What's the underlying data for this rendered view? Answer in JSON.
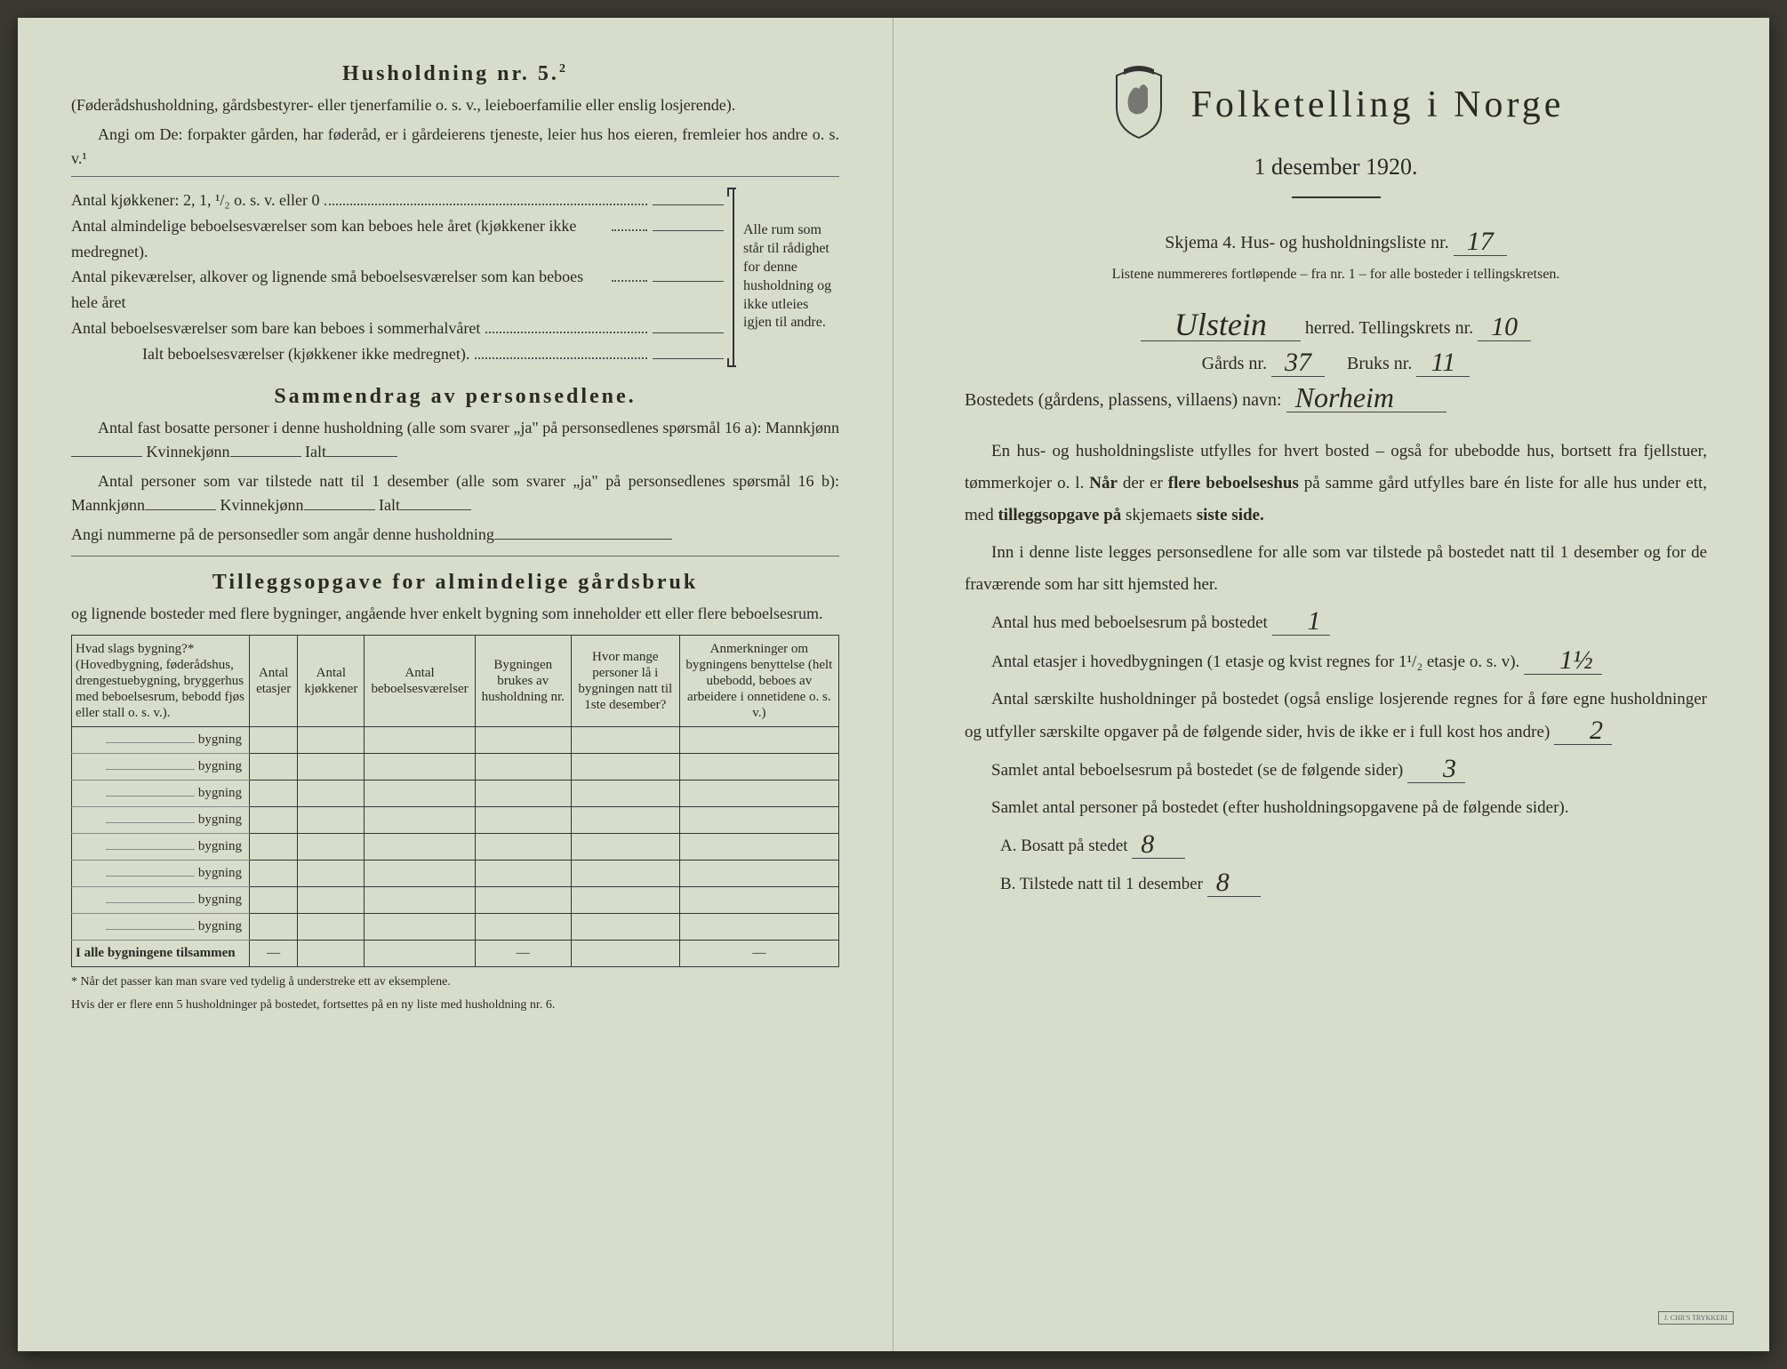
{
  "left": {
    "household_title": "Husholdning nr. 5.",
    "household_sup": "2",
    "household_sub": "(Føderådshusholdning, gårdsbestyrer- eller tjenerfamilie o. s. v., leieboerfamilie eller enslig losjerende).",
    "household_q": "Angi om De: forpakter gården, har føderåd, er i gårdeierens tjeneste, leier hus hos eieren, fremleier hos andre o. s. v.¹",
    "kitchen_line": "Antal kjøkkener: 2, 1, ¹/₂ o. s. v. eller 0",
    "rooms": [
      "Antal almindelige beboelsesværelser som kan beboes hele året (kjøkkener ikke medregnet).",
      "Antal pikeværelser, alkover og lignende små beboelsesværelser som kan beboes hele året",
      "Antal beboelsesværelser som bare kan beboes i sommerhalvåret",
      "Ialt beboelsesværelser (kjøkkener ikke medregnet)."
    ],
    "bracket_note": "Alle rum som står til rådighet for denne husholdning og ikke utleies igjen til andre.",
    "summary_title": "Sammendrag av personsedlene.",
    "summary_l1": "Antal fast bosatte personer i denne husholdning (alle som svarer „ja\" på personsedlenes spørsmål 16 a): Mannkjønn",
    "summary_l1b": "Kvinnekjønn",
    "summary_l1c": "Ialt",
    "summary_l2": "Antal personer som var tilstede natt til 1 desember (alle som svarer „ja\" på personsedlenes spørsmål 16 b): Mannkjønn",
    "summary_l3": "Angi nummerne på de personsedler som angår denne husholdning",
    "tillegg_title": "Tilleggsopgave for almindelige gårdsbruk",
    "tillegg_sub": "og lignende bosteder med flere bygninger, angående hver enkelt bygning som inneholder ett eller flere beboelsesrum.",
    "table": {
      "headers": [
        "Hvad slags bygning?*\n(Hovedbygning, føderådshus, drengestuebygning, bryggerhus med beboelsesrum, bebodd fjøs eller stall o. s. v.).",
        "Antal etasjer",
        "Antal kjøkkener",
        "Antal beboelsesværelser",
        "Bygningen brukes av husholdning nr.",
        "Hvor mange personer lå i bygningen natt til 1ste desember?",
        "Anmerkninger om bygningens benyttelse (helt ubebodd, beboes av arbeidere i onnetidene o. s. v.)"
      ],
      "row_label": "bygning",
      "num_rows": 8,
      "sum_label": "I alle bygningene tilsammen"
    },
    "footnote1": "* Når det passer kan man svare ved tydelig å understreke ett av eksemplene.",
    "footnote2": "Hvis der er flere enn 5 husholdninger på bostedet, fortsettes på en ny liste med husholdning nr. 6."
  },
  "right": {
    "main_title": "Folketelling i Norge",
    "subtitle": "1 desember 1920.",
    "schema_line_a": "Skjema 4.  Hus- og husholdningsliste nr.",
    "schema_val": "17",
    "list_note": "Listene nummereres fortløpende – fra nr. 1 – for alle bosteder i tellingskretsen.",
    "herred_val": "Ulstein",
    "herred_label": "herred.   Tellingskrets nr.",
    "tellingskrets_val": "10",
    "gards_label": "Gårds nr.",
    "gards_val": "37",
    "bruks_label": "Bruks nr.",
    "bruks_val": "11",
    "bosted_label": "Bostedets (gårdens, plassens, villaens) navn:",
    "bosted_val": "Norheim",
    "para1": "En hus- og husholdningsliste utfylles for hvert bosted – også for ubebodde hus, bortsett fra fjellstuer, tømmerkojer o. l.  Når der er flere beboelseshus på samme gård utfylles bare én liste for alle hus under ett, med tilleggsopgave på skjemaets siste side.",
    "para2": "Inn i denne liste legges personsedlene for alle som var tilstede på bostedet natt til 1 desember og for de fraværende som har sitt hjemsted her.",
    "q_hus": "Antal hus med beboelsesrum på bostedet",
    "q_hus_val": "1",
    "q_etasjer_a": "Antal etasjer i hovedbygningen (1 etasje og kvist regnes for 1¹/₂ etasje o. s. v).",
    "q_etasjer_val": "1½",
    "q_hush": "Antal særskilte husholdninger på bostedet (også enslige losjerende regnes for å føre egne husholdninger og utfyller særskilte opgaver på de følgende sider, hvis de ikke er i full kost hos andre)",
    "q_hush_val": "2",
    "q_rum": "Samlet antal beboelsesrum på bostedet (se de følgende sider)",
    "q_rum_val": "3",
    "q_pers": "Samlet antal personer på bostedet (efter husholdningsopgavene på de følgende sider).",
    "q_a": "A.  Bosatt på stedet",
    "q_a_val": "8",
    "q_b": "B.  Tilstede natt til 1 desember",
    "q_b_val": "8"
  },
  "colors": {
    "paper": "#d8dccb",
    "ink": "#2a2a24",
    "hand": "#3a3a3a"
  }
}
